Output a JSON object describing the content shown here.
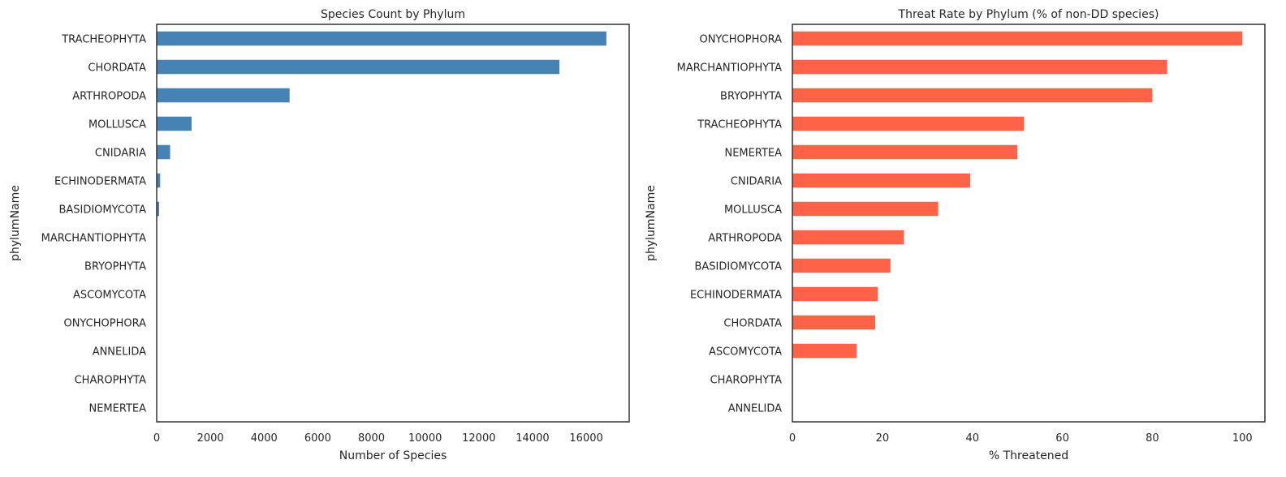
{
  "chart_data": [
    {
      "type": "bar",
      "orientation": "horizontal",
      "title": "Species Count by Phylum",
      "xlabel": "Number of Species",
      "ylabel": "phylumName",
      "xlim": [
        0,
        17600
      ],
      "xticks": [
        0,
        2000,
        4000,
        6000,
        8000,
        10000,
        12000,
        14000,
        16000
      ],
      "grid": false,
      "color": "#4682b4",
      "categories": [
        "TRACHEOPHYTA",
        "CHORDATA",
        "ARTHROPODA",
        "MOLLUSCA",
        "CNIDARIA",
        "ECHINODERMATA",
        "BASIDIOMYCOTA",
        "MARCHANTIOPHYTA",
        "BRYOPHYTA",
        "ASCOMYCOTA",
        "ONYCHOPHORA",
        "ANNELIDA",
        "CHAROPHYTA",
        "NEMERTEA"
      ],
      "values": [
        16750,
        15000,
        4950,
        1300,
        500,
        130,
        90,
        10,
        5,
        3,
        1,
        1,
        1,
        1
      ]
    },
    {
      "type": "bar",
      "orientation": "horizontal",
      "title": "Threat Rate by Phylum (% of non-DD species)",
      "xlabel": "% Threatened",
      "ylabel": "phylumName",
      "xlim": [
        0,
        105
      ],
      "xticks": [
        0,
        20,
        40,
        60,
        80,
        100
      ],
      "grid": false,
      "color": "#ff6347",
      "categories": [
        "ONYCHOPHORA",
        "MARCHANTIOPHYTA",
        "BRYOPHYTA",
        "TRACHEOPHYTA",
        "NEMERTEA",
        "CNIDARIA",
        "MOLLUSCA",
        "ARTHROPODA",
        "BASIDIOMYCOTA",
        "ECHINODERMATA",
        "CHORDATA",
        "ASCOMYCOTA",
        "CHAROPHYTA",
        "ANNELIDA"
      ],
      "values": [
        100,
        83.3,
        80,
        51.5,
        50,
        39.5,
        32.4,
        24.8,
        21.8,
        19,
        18.4,
        14.3,
        0,
        0
      ]
    }
  ]
}
